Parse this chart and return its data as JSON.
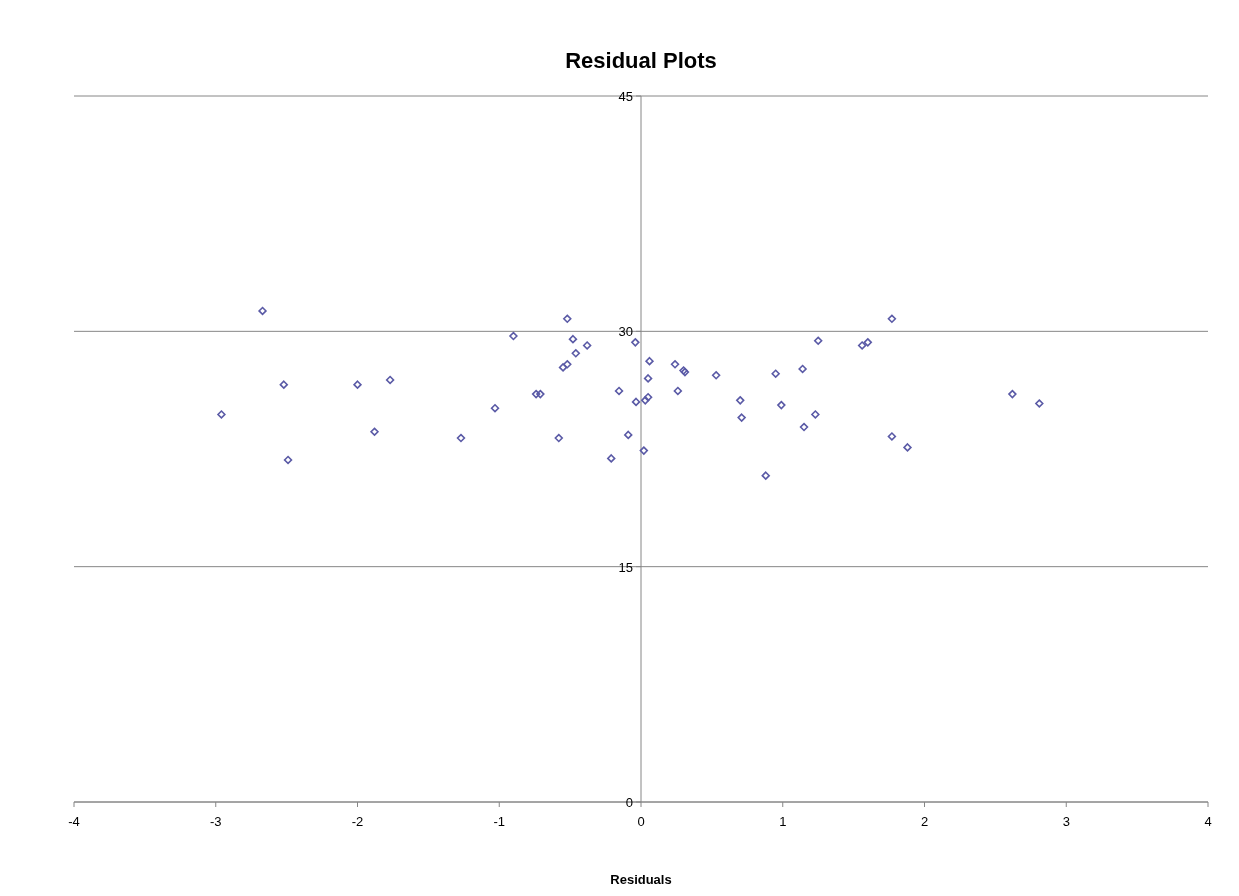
{
  "chart_data": {
    "type": "scatter",
    "title": "Residual Plots",
    "xlabel": "Residuals",
    "xlim": [
      -4,
      4
    ],
    "xticks": [
      -4,
      -3,
      -2,
      -1,
      0,
      1,
      2,
      3,
      4
    ],
    "ylim": [
      0,
      45
    ],
    "yticks": [
      0,
      15,
      30,
      45
    ],
    "grid": "y",
    "marker": "diamond",
    "series": [
      {
        "color": "#5a5aa6",
        "x": [
          -2.96,
          -2.67,
          -2.52,
          -2.49,
          -2.0,
          -1.77,
          -1.88,
          -1.27,
          -1.03,
          -0.9,
          -0.74,
          -0.71,
          -0.58,
          -0.52,
          -0.48,
          -0.46,
          -0.55,
          -0.52,
          -0.38,
          -0.21,
          -0.155,
          -0.09,
          -0.04,
          -0.035,
          0.02,
          0.06,
          0.05,
          0.05,
          0.03,
          0.24,
          0.3,
          0.31,
          0.26,
          0.53,
          0.7,
          0.71,
          0.88,
          0.95,
          0.99,
          1.14,
          1.15,
          1.23,
          1.25,
          1.56,
          1.6,
          1.77,
          1.77,
          1.88,
          2.62,
          2.81
        ],
        "values": [
          24.7,
          31.3,
          26.6,
          21.8,
          26.6,
          26.9,
          23.6,
          23.2,
          25.1,
          29.7,
          26.0,
          26.0,
          23.2,
          30.8,
          29.5,
          28.6,
          27.7,
          27.9,
          29.1,
          21.9,
          26.2,
          23.4,
          29.3,
          25.5,
          22.4,
          28.1,
          27.0,
          25.8,
          25.6,
          27.9,
          27.5,
          27.4,
          26.2,
          27.2,
          25.6,
          24.5,
          20.8,
          27.3,
          25.3,
          27.6,
          23.9,
          24.7,
          29.4,
          29.1,
          29.3,
          30.8,
          23.3,
          22.6,
          26.0,
          25.4
        ]
      }
    ]
  }
}
